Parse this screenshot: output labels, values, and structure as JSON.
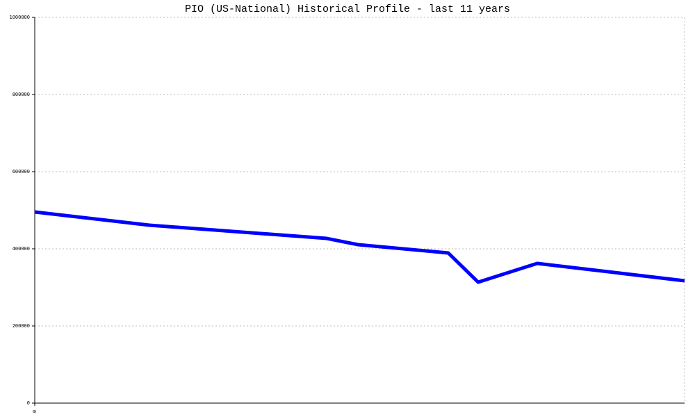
{
  "chart_data": {
    "type": "line",
    "title": "PIO (US-National) Historical Profile - last 11 years",
    "x": [
      0,
      165,
      420,
      465,
      595,
      638,
      723,
      935
    ],
    "xlim": [
      0,
      935
    ],
    "xticks": [
      0
    ],
    "series": [
      {
        "name": "PIO",
        "color": "#0000ff",
        "values": [
          495500,
          461300,
          427000,
          410800,
          389200,
          313500,
          362200,
          317100
        ]
      }
    ],
    "ylim": [
      0,
      1000000
    ],
    "yticks": [
      0,
      200000,
      400000,
      600000,
      800000,
      1000000
    ],
    "grid": true
  }
}
